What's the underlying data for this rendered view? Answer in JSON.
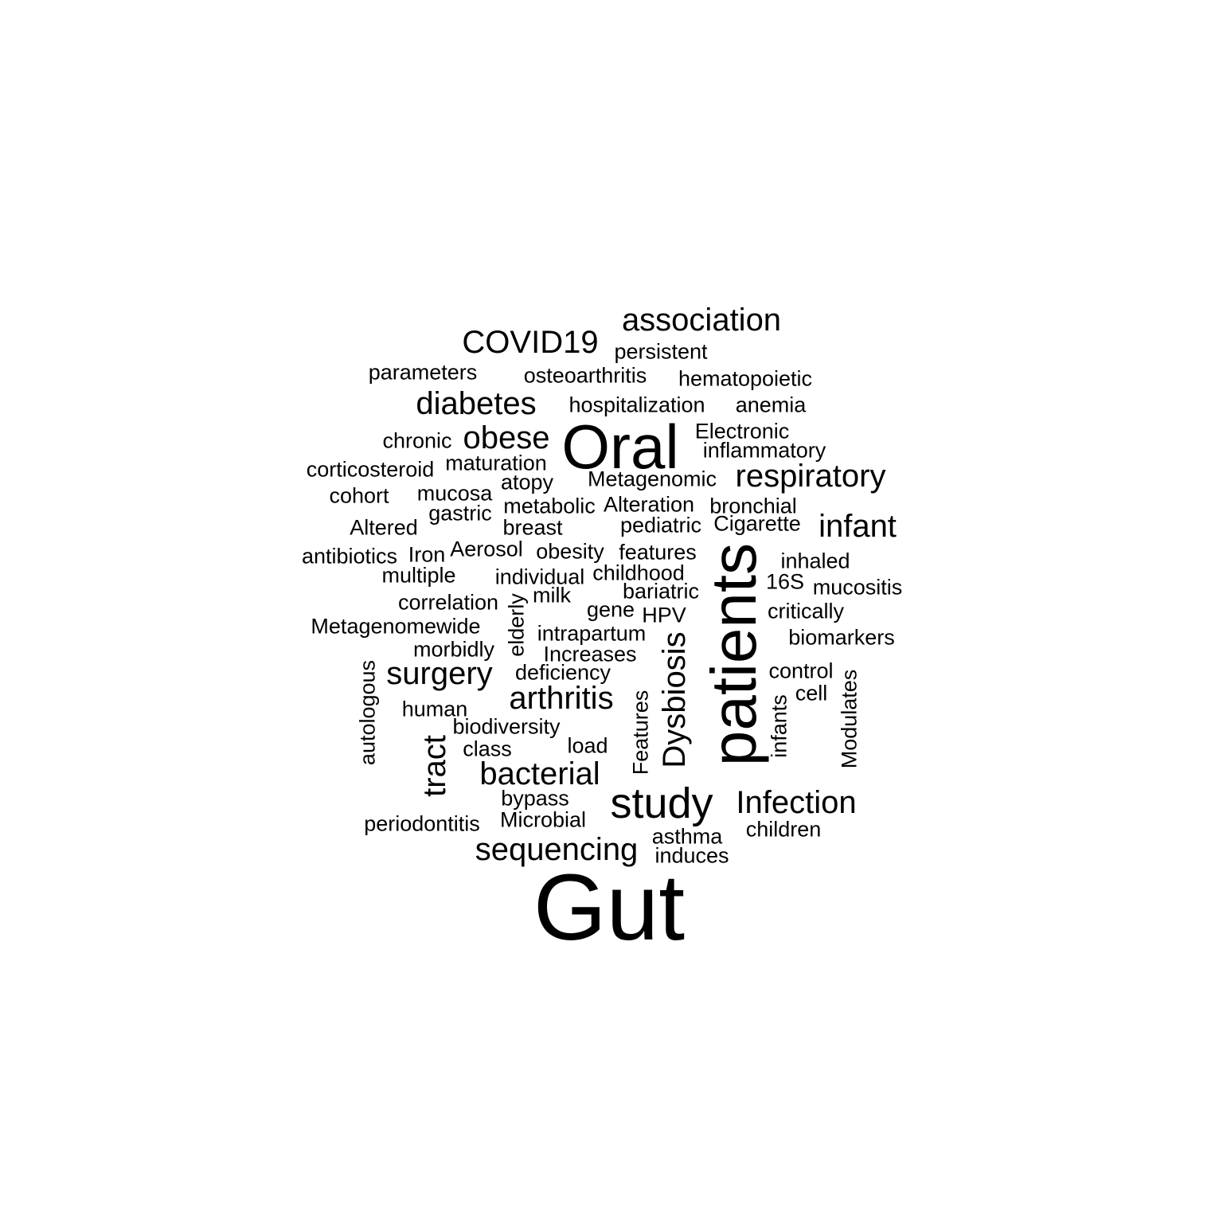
{
  "words": [
    {
      "text": "Gut",
      "weight": 10
    },
    {
      "text": "patients",
      "weight": 6
    },
    {
      "text": "Oral",
      "weight": 7
    },
    {
      "text": "association",
      "weight": 3
    },
    {
      "text": "COVID19",
      "weight": 3
    },
    {
      "text": "persistent",
      "weight": 1
    },
    {
      "text": "parameters",
      "weight": 1
    },
    {
      "text": "osteoarthritis",
      "weight": 1
    },
    {
      "text": "hematopoietic",
      "weight": 1
    },
    {
      "text": "diabetes",
      "weight": 3
    },
    {
      "text": "hospitalization",
      "weight": 1
    },
    {
      "text": "anemia",
      "weight": 1
    },
    {
      "text": "Electronic",
      "weight": 1
    },
    {
      "text": "chronic",
      "weight": 1
    },
    {
      "text": "obese",
      "weight": 3
    },
    {
      "text": "inflammatory",
      "weight": 1
    },
    {
      "text": "corticosteroid",
      "weight": 1
    },
    {
      "text": "maturation",
      "weight": 1
    },
    {
      "text": "respiratory",
      "weight": 3
    },
    {
      "text": "Metagenomic",
      "weight": 1
    },
    {
      "text": "atopy",
      "weight": 1
    },
    {
      "text": "cohort",
      "weight": 1
    },
    {
      "text": "mucosa",
      "weight": 1
    },
    {
      "text": "metabolic",
      "weight": 1
    },
    {
      "text": "Alteration",
      "weight": 1
    },
    {
      "text": "bronchial",
      "weight": 1
    },
    {
      "text": "gastric",
      "weight": 1
    },
    {
      "text": "infant",
      "weight": 3
    },
    {
      "text": "Altered",
      "weight": 1
    },
    {
      "text": "breast",
      "weight": 1
    },
    {
      "text": "pediatric",
      "weight": 1
    },
    {
      "text": "Cigarette",
      "weight": 1
    },
    {
      "text": "antibiotics",
      "weight": 1
    },
    {
      "text": "Iron",
      "weight": 1
    },
    {
      "text": "Aerosol",
      "weight": 1
    },
    {
      "text": "obesity",
      "weight": 1
    },
    {
      "text": "features",
      "weight": 1
    },
    {
      "text": "inhaled",
      "weight": 1
    },
    {
      "text": "multiple",
      "weight": 1
    },
    {
      "text": "individual",
      "weight": 1
    },
    {
      "text": "childhood",
      "weight": 1
    },
    {
      "text": "16S",
      "weight": 1
    },
    {
      "text": "mucositis",
      "weight": 1
    },
    {
      "text": "correlation",
      "weight": 1
    },
    {
      "text": "milk",
      "weight": 1
    },
    {
      "text": "bariatric",
      "weight": 1
    },
    {
      "text": "elderly",
      "weight": 1
    },
    {
      "text": "gene",
      "weight": 1
    },
    {
      "text": "HPV",
      "weight": 1
    },
    {
      "text": "critically",
      "weight": 1
    },
    {
      "text": "Metagenomewide",
      "weight": 1
    },
    {
      "text": "intrapartum",
      "weight": 1
    },
    {
      "text": "biomarkers",
      "weight": 1
    },
    {
      "text": "morbidly",
      "weight": 1
    },
    {
      "text": "Increases",
      "weight": 1
    },
    {
      "text": "Dysbiosis",
      "weight": 2
    },
    {
      "text": "autologous",
      "weight": 1
    },
    {
      "text": "surgery",
      "weight": 3
    },
    {
      "text": "deficiency",
      "weight": 1
    },
    {
      "text": "control",
      "weight": 1
    },
    {
      "text": "arthritis",
      "weight": 3
    },
    {
      "text": "cell",
      "weight": 1
    },
    {
      "text": "Modulates",
      "weight": 1
    },
    {
      "text": "human",
      "weight": 1
    },
    {
      "text": "infants",
      "weight": 1
    },
    {
      "text": "Features",
      "weight": 1
    },
    {
      "text": "biodiversity",
      "weight": 1
    },
    {
      "text": "tract",
      "weight": 2
    },
    {
      "text": "class",
      "weight": 1
    },
    {
      "text": "load",
      "weight": 1
    },
    {
      "text": "bacterial",
      "weight": 3
    },
    {
      "text": "study",
      "weight": 4
    },
    {
      "text": "Infection",
      "weight": 3
    },
    {
      "text": "bypass",
      "weight": 1
    },
    {
      "text": "periodontitis",
      "weight": 1
    },
    {
      "text": "Microbial",
      "weight": 1
    },
    {
      "text": "children",
      "weight": 1
    },
    {
      "text": "asthma",
      "weight": 1
    },
    {
      "text": "sequencing",
      "weight": 3
    },
    {
      "text": "induces",
      "weight": 1
    }
  ]
}
